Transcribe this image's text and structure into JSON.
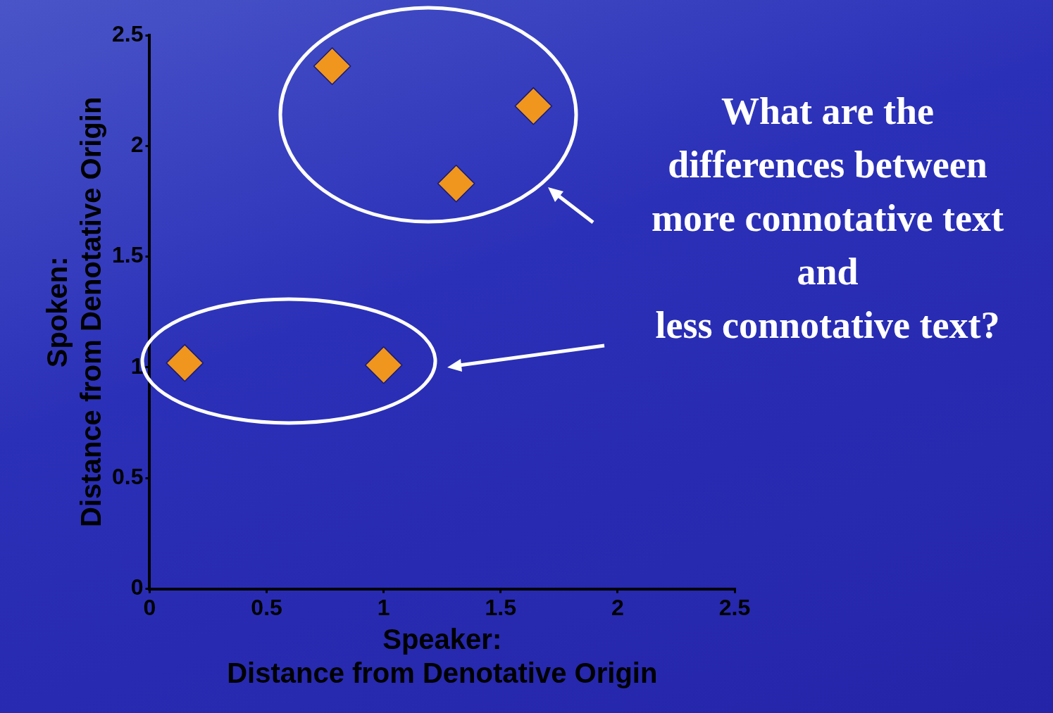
{
  "chart_data": {
    "type": "scatter",
    "xlabel": "Speaker:\nDistance from Denotative Origin",
    "ylabel": "Spoken:\nDistance from Denotative Origin",
    "x": [
      0.78,
      1.64,
      1.31,
      0.15,
      1.0
    ],
    "series": [
      {
        "color": "#f0961e",
        "values": [
          2.36,
          2.18,
          1.83,
          1.02,
          1.01
        ]
      }
    ],
    "xlim": [
      0,
      2.5
    ],
    "ylim": [
      0,
      2.5
    ],
    "xticks": [
      0,
      0.5,
      1,
      1.5,
      2,
      2.5
    ],
    "yticks": [
      0,
      0.5,
      1,
      1.5,
      2,
      2.5
    ],
    "marker": "diamond",
    "grid": false,
    "legend": false,
    "annotations": [
      "What are the\ndifferences between\nmore connotative text\nand\nless connotative text?"
    ]
  }
}
